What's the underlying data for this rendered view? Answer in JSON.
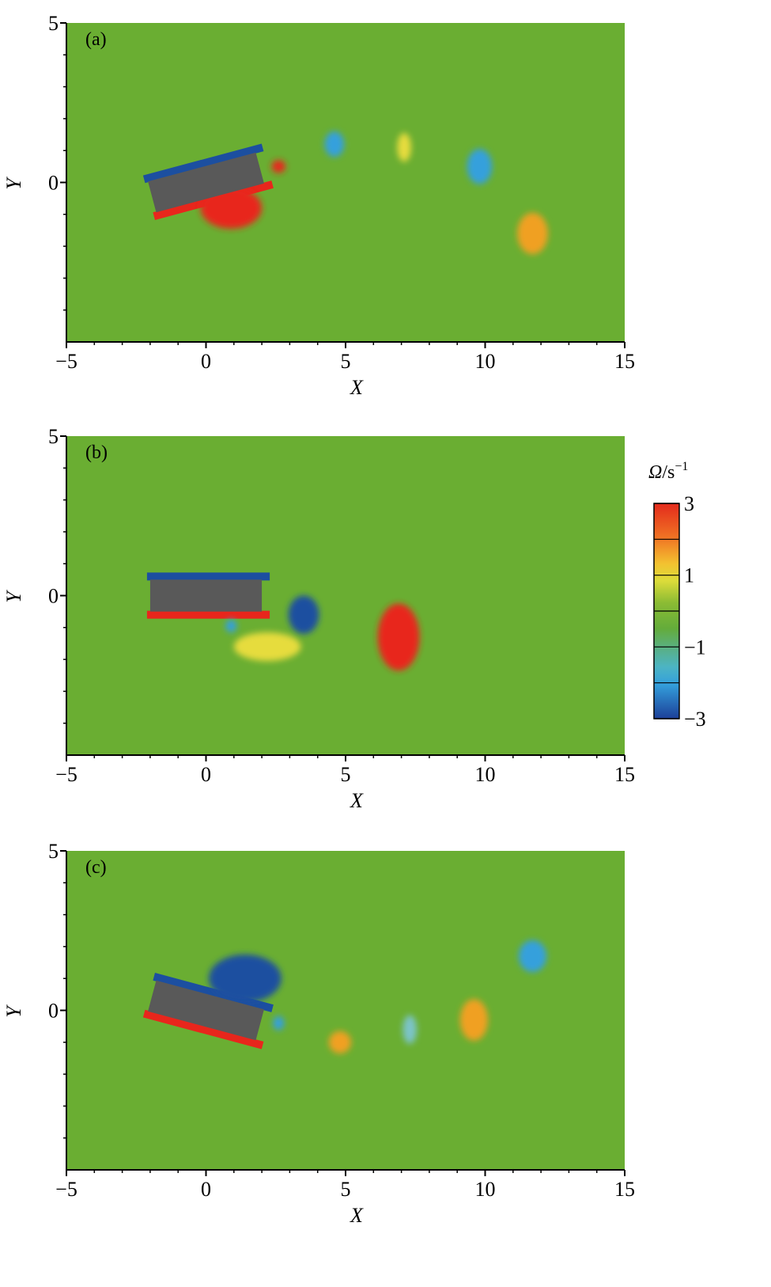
{
  "colors": {
    "background_field": "#6aae32",
    "body": "#595959",
    "positive_strong": "#e8261c",
    "positive_mid": "#f0a020",
    "positive_weak": "#e6dc3c",
    "negative_strong": "#1c4fa0",
    "negative_mid": "#34a0dc",
    "negative_weak": "#7cc4c8"
  },
  "chart_data": [
    {
      "type": "heatmap",
      "panel_label": "(a)",
      "xlabel": "X",
      "ylabel": "Y",
      "xlim": [
        -5,
        15
      ],
      "ylim": [
        -5,
        5
      ],
      "x_ticks": [
        "−5",
        "0",
        "5",
        "10",
        "15"
      ],
      "y_ticks": [
        "5",
        "0"
      ],
      "body": {
        "center": [
          0,
          0
        ],
        "length": 4,
        "height": 1,
        "angle_deg": 15
      },
      "vortices": [
        {
          "x": 0.9,
          "y": -0.8,
          "rx": 1.1,
          "ry": 0.65,
          "value": 3
        },
        {
          "x": 2.6,
          "y": 0.5,
          "rx": 0.25,
          "ry": 0.2,
          "value": 3
        },
        {
          "x": 4.6,
          "y": 1.2,
          "rx": 0.35,
          "ry": 0.4,
          "value": -2.5
        },
        {
          "x": 7.1,
          "y": 1.1,
          "rx": 0.25,
          "ry": 0.45,
          "value": 2
        },
        {
          "x": 9.8,
          "y": 0.5,
          "rx": 0.45,
          "ry": 0.55,
          "value": -2.2
        },
        {
          "x": 11.7,
          "y": -1.6,
          "rx": 0.55,
          "ry": 0.65,
          "value": 2.5
        }
      ]
    },
    {
      "type": "heatmap",
      "panel_label": "(b)",
      "xlabel": "X",
      "ylabel": "Y",
      "xlim": [
        -5,
        15
      ],
      "ylim": [
        -5,
        5
      ],
      "x_ticks": [
        "−5",
        "0",
        "5",
        "10",
        "15"
      ],
      "y_ticks": [
        "5",
        "0"
      ],
      "body": {
        "center": [
          0,
          0
        ],
        "length": 4,
        "height": 1,
        "angle_deg": 0
      },
      "vortices": [
        {
          "x": 3.5,
          "y": -0.6,
          "rx": 0.55,
          "ry": 0.6,
          "value": -3
        },
        {
          "x": 2.2,
          "y": -1.6,
          "rx": 1.2,
          "ry": 0.45,
          "value": 2
        },
        {
          "x": 6.9,
          "y": -1.3,
          "rx": 0.75,
          "ry": 1.05,
          "value": 3
        },
        {
          "x": 0.9,
          "y": -0.95,
          "rx": 0.2,
          "ry": 0.2,
          "value": -2.5
        }
      ]
    },
    {
      "type": "heatmap",
      "panel_label": "(c)",
      "xlabel": "X",
      "ylabel": "Y",
      "xlim": [
        -5,
        15
      ],
      "ylim": [
        -5,
        5
      ],
      "x_ticks": [
        "−5",
        "0",
        "5",
        "10",
        "15"
      ],
      "y_ticks": [
        "5",
        "0"
      ],
      "body": {
        "center": [
          0,
          0
        ],
        "length": 4,
        "height": 1,
        "angle_deg": -15
      },
      "vortices": [
        {
          "x": 1.4,
          "y": 1.0,
          "rx": 1.3,
          "ry": 0.75,
          "value": -3
        },
        {
          "x": 2.6,
          "y": -0.4,
          "rx": 0.2,
          "ry": 0.22,
          "value": -2.5
        },
        {
          "x": 4.8,
          "y": -1.0,
          "rx": 0.4,
          "ry": 0.35,
          "value": 2.5
        },
        {
          "x": 7.3,
          "y": -0.6,
          "rx": 0.25,
          "ry": 0.45,
          "value": -1.8
        },
        {
          "x": 9.6,
          "y": -0.3,
          "rx": 0.5,
          "ry": 0.65,
          "value": 2.2
        },
        {
          "x": 11.7,
          "y": 1.7,
          "rx": 0.5,
          "ry": 0.5,
          "value": -2.5
        }
      ]
    }
  ],
  "colorbar": {
    "title_symbol": "Ω",
    "title_unit": "/s",
    "title_exponent": "−1",
    "min": -3,
    "max": 3,
    "tick_labels": [
      "3",
      "1",
      "−1",
      "−3"
    ]
  }
}
